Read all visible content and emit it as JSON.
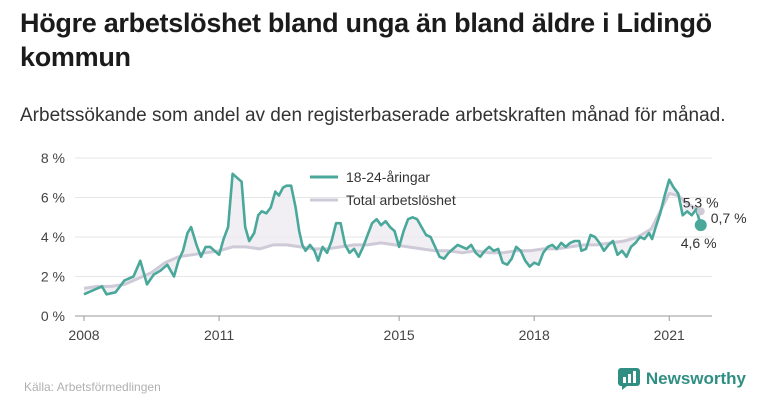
{
  "title": "Högre arbetslöshet bland unga än bland äldre i Lidingö kommun",
  "subtitle": "Arbetssökande som andel av den registerbaserade arbetskraften månad för månad.",
  "source": "Källa: Arbetsförmedlingen",
  "brand": "Newsworthy",
  "colors": {
    "youth": "#4aa89b",
    "total": "#cfcad8",
    "fill": "#ece9f0",
    "brand": "#2f8f83"
  },
  "chart_data": {
    "type": "line",
    "ylim": [
      0,
      8
    ],
    "xlim": [
      2007.8,
      2021.95
    ],
    "yticks": [
      0,
      2,
      4,
      6,
      8
    ],
    "ytick_labels": [
      "0 %",
      "2 %",
      "4 %",
      "6 %",
      "8 %"
    ],
    "xticks": [
      2008,
      2011,
      2015,
      2018,
      2021
    ],
    "xtick_labels": [
      "2008",
      "2011",
      "2015",
      "2018",
      "2021"
    ],
    "grid": true,
    "legend_position": "top-center",
    "series": [
      {
        "name": "18-24-åringar",
        "color": "#4aa89b",
        "points": [
          [
            2008.0,
            1.1
          ],
          [
            2008.2,
            1.3
          ],
          [
            2008.4,
            1.5
          ],
          [
            2008.5,
            1.1
          ],
          [
            2008.7,
            1.2
          ],
          [
            2008.9,
            1.8
          ],
          [
            2009.1,
            2.0
          ],
          [
            2009.25,
            2.8
          ],
          [
            2009.4,
            1.6
          ],
          [
            2009.55,
            2.1
          ],
          [
            2009.7,
            2.3
          ],
          [
            2009.85,
            2.6
          ],
          [
            2010.0,
            2.0
          ],
          [
            2010.1,
            2.8
          ],
          [
            2010.2,
            3.3
          ],
          [
            2010.3,
            4.2
          ],
          [
            2010.38,
            4.5
          ],
          [
            2010.5,
            3.6
          ],
          [
            2010.6,
            3.0
          ],
          [
            2010.7,
            3.5
          ],
          [
            2010.8,
            3.5
          ],
          [
            2010.9,
            3.3
          ],
          [
            2011.0,
            3.1
          ],
          [
            2011.1,
            3.9
          ],
          [
            2011.2,
            4.5
          ],
          [
            2011.3,
            7.2
          ],
          [
            2011.4,
            7.0
          ],
          [
            2011.5,
            6.8
          ],
          [
            2011.58,
            4.5
          ],
          [
            2011.67,
            3.8
          ],
          [
            2011.78,
            4.2
          ],
          [
            2011.87,
            5.1
          ],
          [
            2011.95,
            5.3
          ],
          [
            2012.05,
            5.2
          ],
          [
            2012.15,
            5.5
          ],
          [
            2012.25,
            6.3
          ],
          [
            2012.33,
            6.1
          ],
          [
            2012.42,
            6.5
          ],
          [
            2012.5,
            6.6
          ],
          [
            2012.6,
            6.6
          ],
          [
            2012.7,
            5.5
          ],
          [
            2012.78,
            4.3
          ],
          [
            2012.85,
            3.6
          ],
          [
            2012.92,
            3.3
          ],
          [
            2013.02,
            3.6
          ],
          [
            2013.12,
            3.3
          ],
          [
            2013.2,
            2.8
          ],
          [
            2013.3,
            3.5
          ],
          [
            2013.4,
            3.2
          ],
          [
            2013.5,
            3.8
          ],
          [
            2013.6,
            4.7
          ],
          [
            2013.7,
            4.7
          ],
          [
            2013.8,
            3.6
          ],
          [
            2013.9,
            3.2
          ],
          [
            2014.0,
            3.4
          ],
          [
            2014.1,
            3.0
          ],
          [
            2014.2,
            3.5
          ],
          [
            2014.3,
            4.1
          ],
          [
            2014.4,
            4.7
          ],
          [
            2014.5,
            4.9
          ],
          [
            2014.6,
            4.6
          ],
          [
            2014.7,
            4.8
          ],
          [
            2014.8,
            4.5
          ],
          [
            2014.9,
            4.3
          ],
          [
            2015.0,
            3.5
          ],
          [
            2015.1,
            4.3
          ],
          [
            2015.2,
            4.9
          ],
          [
            2015.3,
            5.0
          ],
          [
            2015.4,
            4.9
          ],
          [
            2015.5,
            4.5
          ],
          [
            2015.6,
            4.1
          ],
          [
            2015.7,
            4.0
          ],
          [
            2015.8,
            3.5
          ],
          [
            2015.9,
            3.0
          ],
          [
            2016.0,
            2.9
          ],
          [
            2016.1,
            3.2
          ],
          [
            2016.2,
            3.4
          ],
          [
            2016.3,
            3.6
          ],
          [
            2016.4,
            3.5
          ],
          [
            2016.5,
            3.4
          ],
          [
            2016.6,
            3.6
          ],
          [
            2016.7,
            3.2
          ],
          [
            2016.8,
            3.0
          ],
          [
            2016.9,
            3.3
          ],
          [
            2017.0,
            3.5
          ],
          [
            2017.1,
            3.3
          ],
          [
            2017.2,
            3.4
          ],
          [
            2017.3,
            2.7
          ],
          [
            2017.4,
            2.6
          ],
          [
            2017.5,
            2.9
          ],
          [
            2017.6,
            3.5
          ],
          [
            2017.7,
            3.3
          ],
          [
            2017.8,
            2.8
          ],
          [
            2017.9,
            2.5
          ],
          [
            2018.0,
            2.7
          ],
          [
            2018.1,
            2.6
          ],
          [
            2018.2,
            3.2
          ],
          [
            2018.3,
            3.5
          ],
          [
            2018.4,
            3.6
          ],
          [
            2018.5,
            3.4
          ],
          [
            2018.6,
            3.7
          ],
          [
            2018.7,
            3.5
          ],
          [
            2018.8,
            3.7
          ],
          [
            2018.9,
            3.8
          ],
          [
            2019.0,
            3.8
          ],
          [
            2019.05,
            3.3
          ],
          [
            2019.15,
            3.4
          ],
          [
            2019.25,
            4.1
          ],
          [
            2019.35,
            4.0
          ],
          [
            2019.45,
            3.7
          ],
          [
            2019.55,
            3.3
          ],
          [
            2019.65,
            3.6
          ],
          [
            2019.75,
            3.8
          ],
          [
            2019.85,
            3.1
          ],
          [
            2019.95,
            3.3
          ],
          [
            2020.05,
            3.0
          ],
          [
            2020.15,
            3.5
          ],
          [
            2020.25,
            3.7
          ],
          [
            2020.35,
            4.0
          ],
          [
            2020.45,
            3.9
          ],
          [
            2020.55,
            4.2
          ],
          [
            2020.62,
            3.9
          ],
          [
            2020.7,
            4.5
          ],
          [
            2020.8,
            5.2
          ],
          [
            2020.9,
            6.1
          ],
          [
            2021.0,
            6.9
          ],
          [
            2021.1,
            6.5
          ],
          [
            2021.2,
            6.2
          ],
          [
            2021.3,
            5.1
          ],
          [
            2021.4,
            5.3
          ],
          [
            2021.5,
            5.1
          ],
          [
            2021.6,
            5.4
          ],
          [
            2021.7,
            4.6
          ]
        ]
      },
      {
        "name": "Total arbetslöshet",
        "color": "#cfcad8",
        "points": [
          [
            2008.0,
            1.4
          ],
          [
            2008.3,
            1.5
          ],
          [
            2008.6,
            1.5
          ],
          [
            2008.9,
            1.6
          ],
          [
            2009.2,
            1.9
          ],
          [
            2009.5,
            2.2
          ],
          [
            2009.8,
            2.7
          ],
          [
            2010.1,
            3.0
          ],
          [
            2010.4,
            3.1
          ],
          [
            2010.7,
            3.2
          ],
          [
            2011.0,
            3.3
          ],
          [
            2011.3,
            3.5
          ],
          [
            2011.6,
            3.5
          ],
          [
            2011.9,
            3.4
          ],
          [
            2012.2,
            3.6
          ],
          [
            2012.5,
            3.6
          ],
          [
            2012.8,
            3.5
          ],
          [
            2013.1,
            3.4
          ],
          [
            2013.4,
            3.4
          ],
          [
            2013.7,
            3.5
          ],
          [
            2014.0,
            3.6
          ],
          [
            2014.3,
            3.6
          ],
          [
            2014.6,
            3.7
          ],
          [
            2014.9,
            3.6
          ],
          [
            2015.2,
            3.5
          ],
          [
            2015.5,
            3.4
          ],
          [
            2015.8,
            3.3
          ],
          [
            2016.1,
            3.3
          ],
          [
            2016.4,
            3.2
          ],
          [
            2016.7,
            3.3
          ],
          [
            2017.0,
            3.2
          ],
          [
            2017.3,
            3.2
          ],
          [
            2017.6,
            3.3
          ],
          [
            2017.9,
            3.3
          ],
          [
            2018.2,
            3.4
          ],
          [
            2018.5,
            3.4
          ],
          [
            2018.8,
            3.5
          ],
          [
            2019.1,
            3.6
          ],
          [
            2019.4,
            3.6
          ],
          [
            2019.7,
            3.7
          ],
          [
            2020.0,
            3.8
          ],
          [
            2020.3,
            4.0
          ],
          [
            2020.6,
            4.4
          ],
          [
            2020.8,
            5.3
          ],
          [
            2021.0,
            6.2
          ],
          [
            2021.2,
            6.1
          ],
          [
            2021.4,
            5.7
          ],
          [
            2021.55,
            5.5
          ],
          [
            2021.7,
            5.3
          ]
        ]
      }
    ],
    "annotations": [
      {
        "text": "5,3 %",
        "anchor": "end-total"
      },
      {
        "text": "0,7 %",
        "anchor": "gap"
      },
      {
        "text": "4,6 %",
        "anchor": "end-youth"
      }
    ]
  }
}
